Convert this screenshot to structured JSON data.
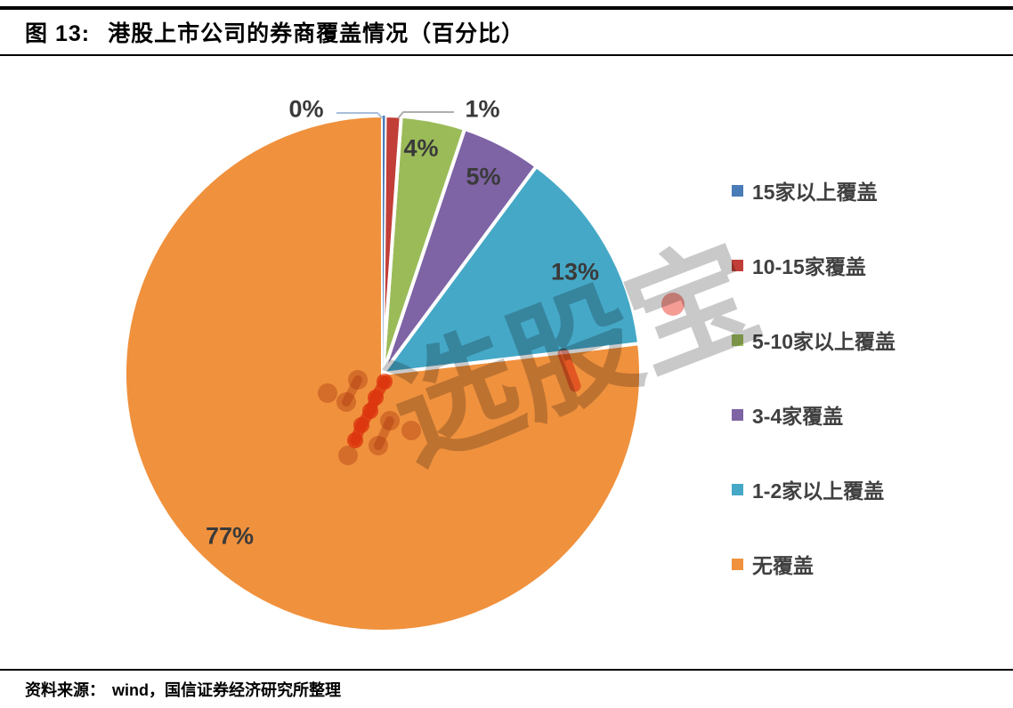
{
  "header": {
    "figure_label": "图 13:",
    "title": "港股上市公司的券商覆盖情况（百分比）"
  },
  "watermark": {
    "text": "选股宝"
  },
  "footer": {
    "source_label": "资料来源：",
    "source_text": "wind，国信证券经济研究所整理"
  },
  "chart_data": {
    "type": "pie",
    "title": "港股上市公司的券商覆盖情况（百分比）",
    "unit": "percent",
    "direction": "clockwise",
    "start_angle_deg": 0,
    "legend_position": "right",
    "grid": false,
    "slices": [
      {
        "label": "15家以上覆盖",
        "value": 0,
        "pct_label": "0%",
        "color": "#4A7CB8"
      },
      {
        "label": "10-15家覆盖",
        "value": 1,
        "pct_label": "1%",
        "color": "#C23E38"
      },
      {
        "label": "5-10家以上覆盖",
        "value": 4,
        "pct_label": "4%",
        "color": "#9BBB59"
      },
      {
        "label": "3-4家覆盖",
        "value": 5,
        "pct_label": "5%",
        "color": "#7E63A5"
      },
      {
        "label": "1-2家以上覆盖",
        "value": 13,
        "pct_label": "13%",
        "color": "#45A8C7"
      },
      {
        "label": "无覆盖",
        "value": 77,
        "pct_label": "77%",
        "color": "#F0913D"
      }
    ]
  }
}
